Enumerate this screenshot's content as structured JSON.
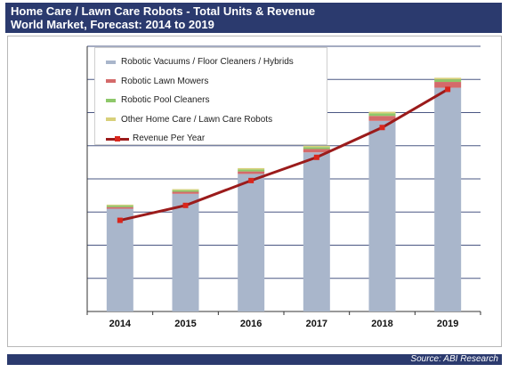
{
  "title": {
    "line1": "Home Care / Lawn Care Robots - Total Units & Revenue",
    "line2": "World Market, Forecast: 2014 to 2019"
  },
  "source": "Source: ABI Research",
  "colors": {
    "title_bg": "#2b3a6e",
    "vacuum": "#a9b6cb",
    "lawn": "#d46a6a",
    "pool": "#8ec86a",
    "other": "#d8d07a",
    "revenue_line": "#9b1b1b",
    "revenue_marker": "#d9261c",
    "grid": "#2b3a6e"
  },
  "chart_data": {
    "type": "bar",
    "stacked": true,
    "categories": [
      "2014",
      "2015",
      "2016",
      "2017",
      "2018",
      "2019"
    ],
    "series": [
      {
        "name": "Robotic Vacuums / Floor Cleaners / Hybrids",
        "values": [
          6.2,
          7.1,
          8.3,
          9.6,
          11.5,
          13.5
        ],
        "color": "#a9b6cb"
      },
      {
        "name": "Robotic Lawn Mowers",
        "values": [
          0.1,
          0.12,
          0.15,
          0.2,
          0.3,
          0.35
        ],
        "color": "#d46a6a"
      },
      {
        "name": "Robotic Pool Cleaners",
        "values": [
          0.1,
          0.1,
          0.12,
          0.12,
          0.15,
          0.15
        ],
        "color": "#8ec86a"
      },
      {
        "name": "Other Home Care / Lawn Care Robots",
        "values": [
          0.05,
          0.06,
          0.08,
          0.08,
          0.1,
          0.1
        ],
        "color": "#d8d07a"
      }
    ],
    "line_series": {
      "name": "Revenue Per Year",
      "values": [
        5.5,
        6.4,
        7.9,
        9.3,
        11.1,
        13.4
      ],
      "color": "#9b1b1b"
    },
    "ylim": [
      0,
      16
    ],
    "y_gridlines": 8,
    "ytick_labels_shown": false,
    "grid": true,
    "legend_position": "top-left"
  }
}
